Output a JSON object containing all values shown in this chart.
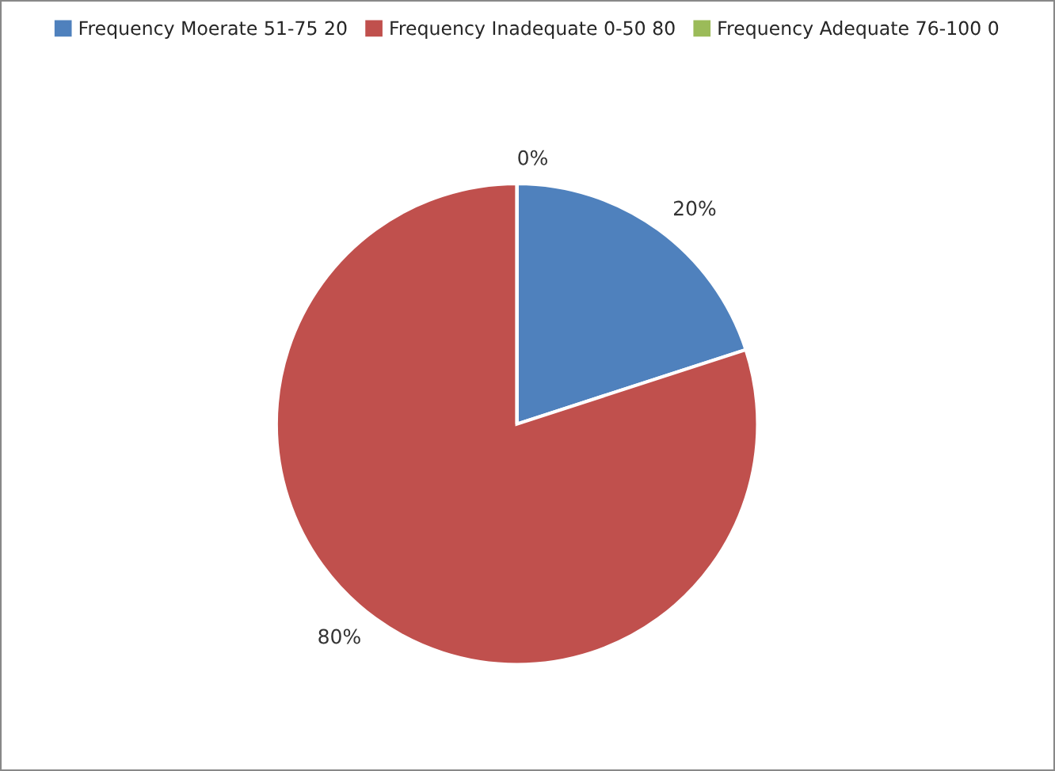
{
  "chart_data": {
    "type": "pie",
    "categories": [
      "Frequency Moerate 51-75 20",
      "Frequency Inadequate 0-50 80",
      "Frequency Adequate 76-100 0"
    ],
    "values": [
      20,
      80,
      0
    ],
    "colors": [
      "#4f81bd",
      "#c0504d",
      "#9bbb59"
    ],
    "value_labels": [
      "20%",
      "80%",
      "0%"
    ],
    "legend": "top"
  }
}
